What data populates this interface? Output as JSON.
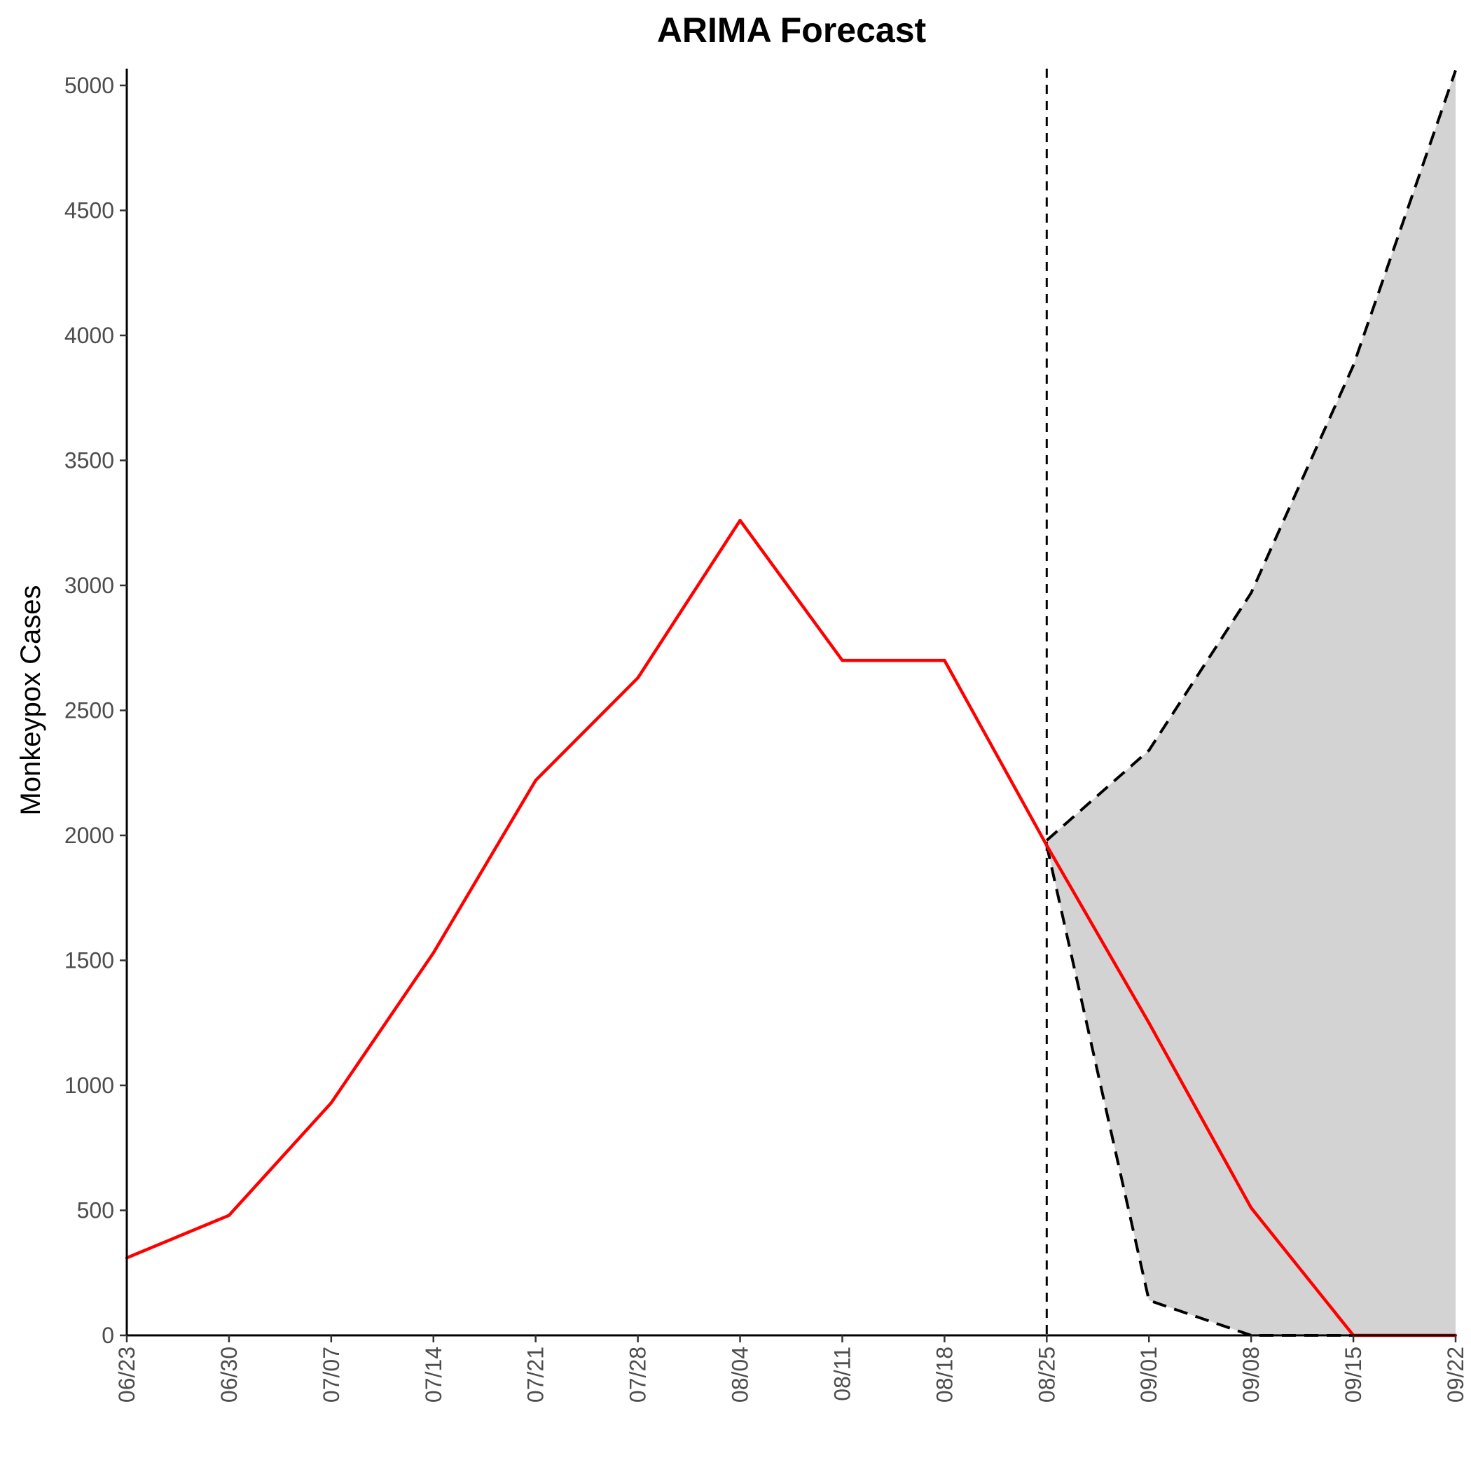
{
  "chart_data": {
    "type": "line",
    "title": "ARIMA Forecast",
    "xlabel": "",
    "ylabel": "Monkeypox Cases",
    "x": [
      "06/23",
      "06/30",
      "07/07",
      "07/14",
      "07/21",
      "07/28",
      "08/04",
      "08/11",
      "08/18",
      "08/25",
      "09/01",
      "09/08",
      "09/15",
      "09/22"
    ],
    "ylim": [
      0,
      5000
    ],
    "yticks": [
      0,
      500,
      1000,
      1500,
      2000,
      2500,
      3000,
      3500,
      4000,
      4500,
      5000
    ],
    "grid": false,
    "forecast_start": "08/25",
    "series": [
      {
        "role": "cases",
        "color": "#ff0000",
        "values": [
          310,
          480,
          930,
          1530,
          2220,
          2630,
          3260,
          2700,
          2700,
          1960,
          1250,
          510,
          0,
          0
        ]
      }
    ],
    "interval": {
      "color": "#d3d3d3",
      "x": [
        "08/25",
        "09/01",
        "09/08",
        "09/15",
        "09/22"
      ],
      "upper": [
        1980,
        2340,
        2970,
        3880,
        5060
      ],
      "lower": [
        1960,
        140,
        0,
        0,
        0
      ]
    }
  }
}
